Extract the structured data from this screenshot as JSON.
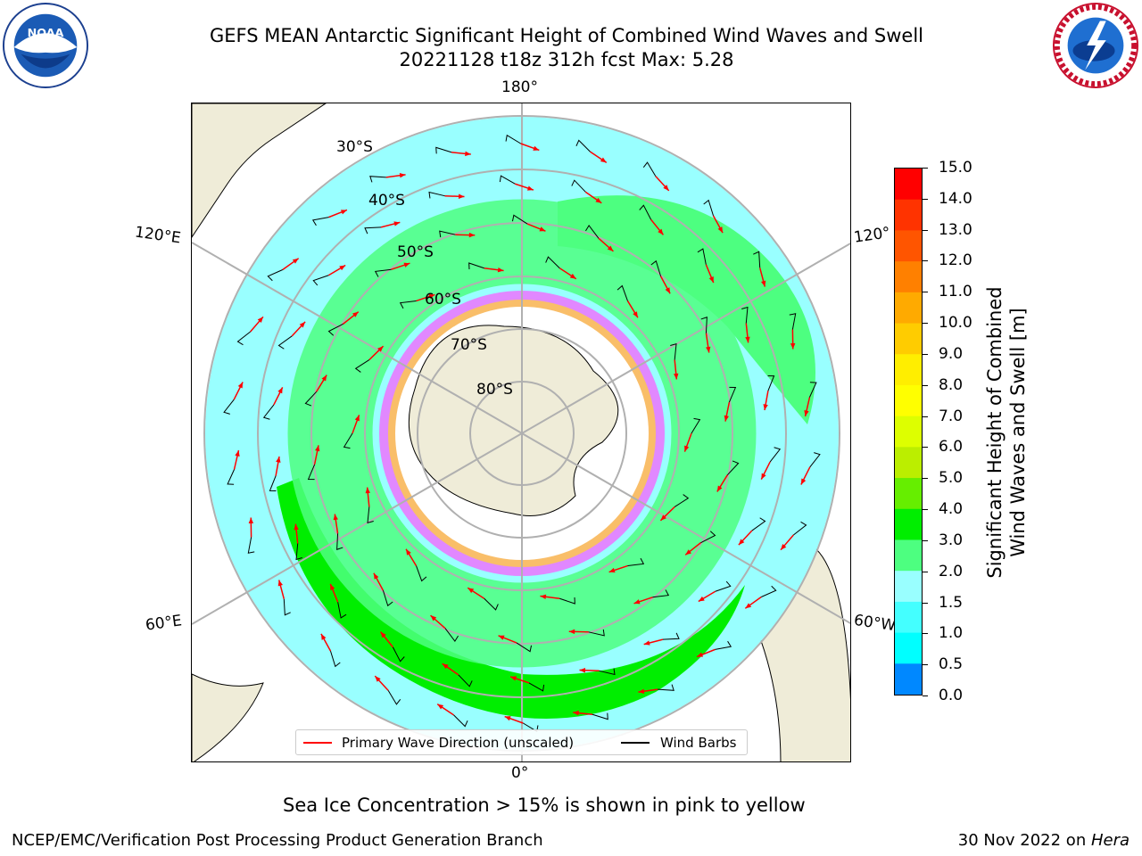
{
  "title": {
    "line1": "GEFS MEAN Antarctic Significant Height of Combined Wind Waves and Swell",
    "line2": "20221128 t18z 312h fcst   Max: 5.28"
  },
  "map": {
    "lon_labels": {
      "top": "180°",
      "bottom": "0°",
      "left_upper": "120°E",
      "left_lower": "60°E",
      "right_upper": "120°",
      "right_lower": "60°W"
    },
    "lat_labels": [
      "30°S",
      "40°S",
      "50°S",
      "60°S",
      "70°S",
      "80°S"
    ],
    "colors": {
      "land": "#efecd8",
      "ice": "#ffffff",
      "ocean_low": "#99ffff",
      "ocean_mid": "#4dff80",
      "ocean_high": "#00ee00",
      "arrow": "#ff0000",
      "barb": "#000000",
      "grid": "#b0b0b0"
    }
  },
  "colorbar": {
    "label": "Significant Height of Combined Wind Waves and Swell [m]",
    "label_line1": "Significant Height of Combined",
    "label_line2": "Wind Waves and Swell [m]",
    "ticks": [
      "15.0",
      "14.0",
      "13.0",
      "12.0",
      "11.0",
      "10.0",
      "9.0",
      "8.0",
      "7.0",
      "6.0",
      "5.0",
      "4.0",
      "3.0",
      "2.0",
      "1.5",
      "1.0",
      "0.5",
      "0.0"
    ],
    "colors": [
      "#ff0000",
      "#ff3300",
      "#ff5500",
      "#ff8000",
      "#ffaa00",
      "#ffcc00",
      "#ffee00",
      "#ffff00",
      "#ddff00",
      "#bbee00",
      "#66ee00",
      "#00ee00",
      "#4dff80",
      "#99ffff",
      "#44ffff",
      "#00ffff",
      "#0088ff",
      "#0000ff"
    ]
  },
  "legend": {
    "wave": "Primary Wave Direction (unscaled)",
    "barb": "Wind Barbs"
  },
  "note": "Sea Ice Concentration > 15% is shown in pink to yellow",
  "footer": {
    "left": "NCEP/EMC/Verification Post Processing Product Generation Branch",
    "right_date": "30 Nov 2022 on ",
    "right_host": "Hera"
  }
}
